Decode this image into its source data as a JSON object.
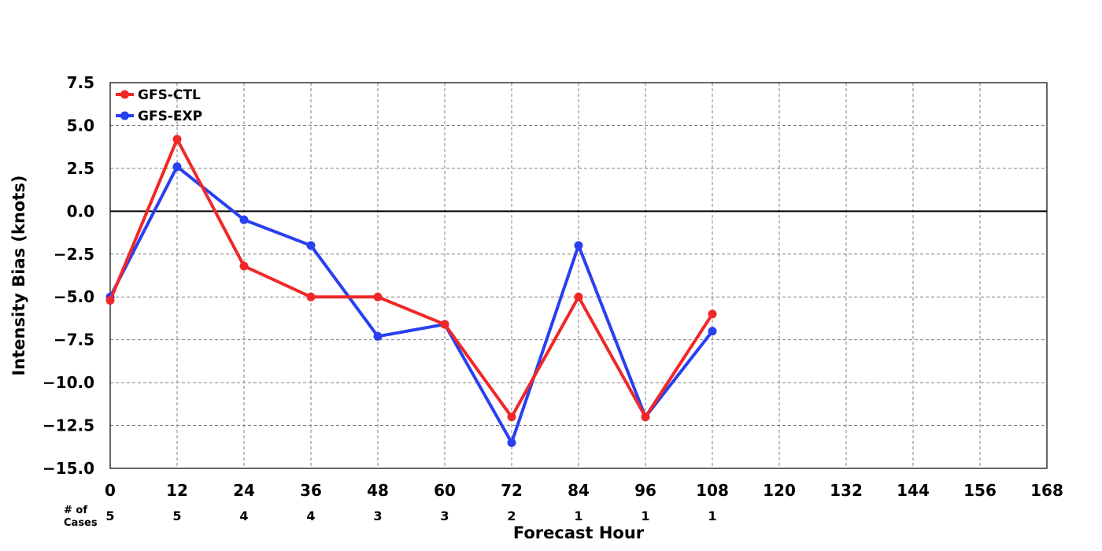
{
  "chart_data": {
    "type": "line",
    "xlabel": "Forecast Hour",
    "ylabel": "Intensity Bias (knots)",
    "xlim": [
      0,
      168
    ],
    "ylim": [
      -15,
      7.5
    ],
    "x_ticks": [
      "0",
      "12",
      "24",
      "36",
      "48",
      "60",
      "72",
      "84",
      "96",
      "108",
      "120",
      "132",
      "144",
      "156",
      "168"
    ],
    "y_ticks": [
      "7.5",
      "5.0",
      "2.5",
      "0.0",
      "−2.5",
      "−5.0",
      "−7.5",
      "−10.0",
      "−12.5",
      "−15.0"
    ],
    "y_tick_values": [
      7.5,
      5.0,
      2.5,
      0.0,
      -2.5,
      -5.0,
      -7.5,
      -10.0,
      -12.5,
      -15.0
    ],
    "grid": true,
    "grid_style": "dashed",
    "zero_line": true,
    "legend_placement": "top-left",
    "x": [
      0,
      12,
      24,
      36,
      48,
      60,
      72,
      84,
      96,
      108
    ],
    "series": [
      {
        "name": "GFS-CTL",
        "color": "#f02828",
        "values": [
          -5.2,
          4.2,
          -3.2,
          -5.0,
          -5.0,
          -6.6,
          -12.0,
          -5.0,
          -12.0,
          -6.0
        ]
      },
      {
        "name": "GFS-EXP",
        "color": "#2840f0",
        "values": [
          -5.0,
          2.6,
          -0.5,
          -2.0,
          -7.3,
          -6.6,
          -13.5,
          -2.0,
          -12.0,
          -7.0
        ]
      }
    ],
    "cases": {
      "label_line1": "# of",
      "label_line2": "Cases",
      "values": [
        "5",
        "5",
        "4",
        "4",
        "3",
        "3",
        "2",
        "1",
        "1",
        "1"
      ]
    }
  }
}
